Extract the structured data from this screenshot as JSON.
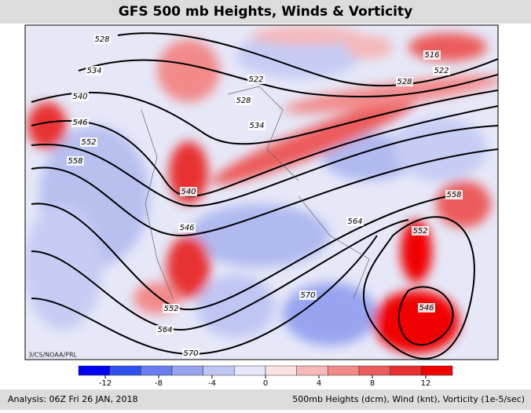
{
  "header": {
    "title": "GFS 500 mb Heights, Winds & Vorticity"
  },
  "map": {
    "credit": "3/CS/NOAA/PRL",
    "contour_labels": [
      528,
      534,
      540,
      546,
      552,
      558,
      540,
      546,
      552,
      564,
      570,
      522,
      528,
      534,
      516,
      522,
      528,
      564,
      570,
      558,
      552,
      546
    ]
  },
  "colorbar": {
    "range": [
      -14,
      14
    ],
    "ticks": [
      -12,
      -8,
      -4,
      0,
      4,
      8,
      12
    ],
    "colors": [
      "#0000f0",
      "#3050f0",
      "#6a7ef0",
      "#98a4f0",
      "#c0c6f4",
      "#e4e6fa",
      "#fbe2e2",
      "#f6b8b8",
      "#f28a8a",
      "#ec5c5c",
      "#e83030",
      "#f00000"
    ]
  },
  "footer": {
    "left": "Analysis: 06Z Fri 26 JAN, 2018",
    "right": "500mb Heights (dcm), Wind (knt), Vorticity (1e-5/sec)"
  }
}
